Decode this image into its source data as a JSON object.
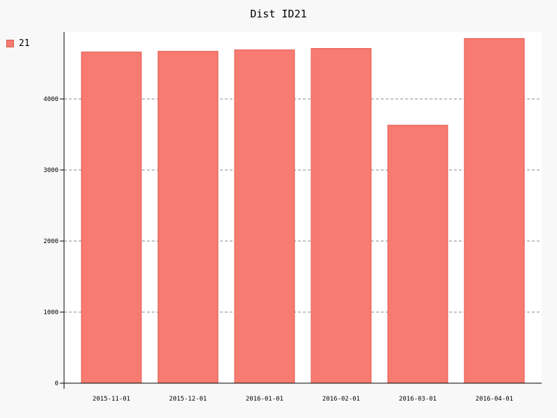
{
  "chart_data": {
    "type": "bar",
    "title": "Dist ID21",
    "categories": [
      "2015-11-01",
      "2015-12-01",
      "2016-01-01",
      "2016-02-01",
      "2016-03-01",
      "2016-04-01"
    ],
    "series": [
      {
        "name": "21",
        "values": [
          4660,
          4670,
          4690,
          4710,
          3630,
          4850
        ],
        "color": "#f77b70"
      }
    ],
    "yticks": [
      0,
      1000,
      2000,
      3000,
      4000
    ],
    "ylim": [
      0,
      4940
    ],
    "grid": true,
    "legend_position": "top-left"
  }
}
